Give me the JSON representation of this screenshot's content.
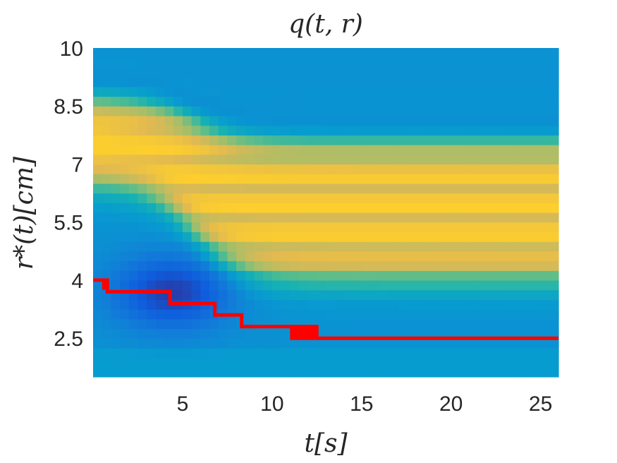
{
  "chart_data": {
    "type": "heatmap",
    "title": "q(t, r)",
    "xlabel": "t[s]",
    "ylabel": "r*(t)[cm]",
    "xlim": [
      0,
      26
    ],
    "ylim": [
      1.5,
      10
    ],
    "x_ticks": [
      {
        "value": 5,
        "label": "5"
      },
      {
        "value": 10,
        "label": "10"
      },
      {
        "value": 15,
        "label": "15"
      },
      {
        "value": 20,
        "label": "20"
      },
      {
        "value": 25,
        "label": "25"
      }
    ],
    "y_ticks": [
      {
        "value": 2.5,
        "label": "2.5"
      },
      {
        "value": 4,
        "label": "4"
      },
      {
        "value": 5.5,
        "label": "5.5"
      },
      {
        "value": 7,
        "label": "7"
      },
      {
        "value": 8.5,
        "label": "8.5"
      },
      {
        "value": 10,
        "label": "10"
      }
    ],
    "colormap": "parula",
    "heatmap": {
      "r_step": 0.25,
      "t_step": 0.5,
      "band_center_start": 7.4,
      "band_center_end": 5.6,
      "band_shift_center_time": 5.6,
      "upper_edge_end": 7.6,
      "lower_edge_end": 4.0,
      "dip_center": [
        4.4,
        3.7
      ],
      "background_level": 0.38
    },
    "series": [
      {
        "name": "r*(t)",
        "color": "#ff0000",
        "points": [
          [
            0,
            4.0
          ],
          [
            0.6,
            4.0
          ],
          [
            0.6,
            3.8
          ],
          [
            0.7,
            3.8
          ],
          [
            0.7,
            4.0
          ],
          [
            0.8,
            4.0
          ],
          [
            0.8,
            3.7
          ],
          [
            4.3,
            3.7
          ],
          [
            4.3,
            3.4
          ],
          [
            6.8,
            3.4
          ],
          [
            6.8,
            3.1
          ],
          [
            8.3,
            3.1
          ],
          [
            8.3,
            2.8
          ],
          [
            11.1,
            2.8
          ],
          [
            11.1,
            2.5
          ],
          [
            11.2,
            2.5
          ],
          [
            11.2,
            2.8
          ],
          [
            11.3,
            2.8
          ],
          [
            11.3,
            2.5
          ],
          [
            11.4,
            2.5
          ],
          [
            11.4,
            2.8
          ],
          [
            11.5,
            2.8
          ],
          [
            11.5,
            2.5
          ],
          [
            11.6,
            2.5
          ],
          [
            11.6,
            2.8
          ],
          [
            11.7,
            2.8
          ],
          [
            11.7,
            2.5
          ],
          [
            11.8,
            2.5
          ],
          [
            11.8,
            2.8
          ],
          [
            11.9,
            2.8
          ],
          [
            11.9,
            2.5
          ],
          [
            12.0,
            2.5
          ],
          [
            12.0,
            2.8
          ],
          [
            12.1,
            2.8
          ],
          [
            12.1,
            2.5
          ],
          [
            12.2,
            2.5
          ],
          [
            12.2,
            2.8
          ],
          [
            12.3,
            2.8
          ],
          [
            12.3,
            2.5
          ],
          [
            12.4,
            2.5
          ],
          [
            12.4,
            2.8
          ],
          [
            12.5,
            2.8
          ],
          [
            12.5,
            2.5
          ],
          [
            26,
            2.5
          ]
        ]
      }
    ]
  }
}
